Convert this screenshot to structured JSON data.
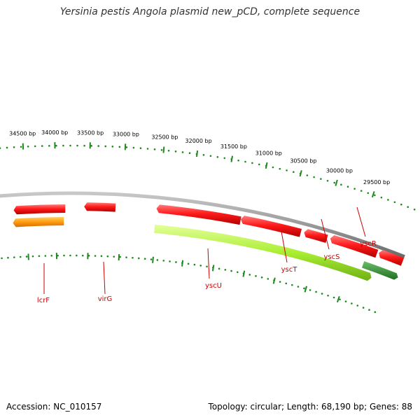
{
  "title": "Yersinia pestis Angola plasmid new_pCD, complete sequence",
  "footer": {
    "accession": "Accession: NC_010157",
    "topology": "Topology: circular; Length: 68,190 bp; Genes: 88"
  },
  "colors": {
    "backbone": "#8a8a8a",
    "forward_gene": "#e81010",
    "reverse_gene": "#99dd22",
    "reverse_gene_dark": "#2c8a2c",
    "orange_gene": "#ff9410",
    "tick": "#1e8a1e",
    "gene_label": "#cc0000"
  },
  "ruler": {
    "labels": [
      "34500 bp",
      "34000 bp",
      "33500 bp",
      "33000 bp",
      "32500 bp",
      "32000 bp",
      "31500 bp",
      "31000 bp",
      "30500 bp",
      "30000 bp",
      "29500 bp"
    ]
  },
  "genes": [
    {
      "name": "lcrF",
      "strand": "orange"
    },
    {
      "name": "virG",
      "strand": "forward"
    },
    {
      "name": "yscU",
      "strand": "forward"
    },
    {
      "name": "yscT",
      "strand": "forward"
    },
    {
      "name": "yscS",
      "strand": "forward"
    },
    {
      "name": "yscR",
      "strand": "forward"
    }
  ]
}
